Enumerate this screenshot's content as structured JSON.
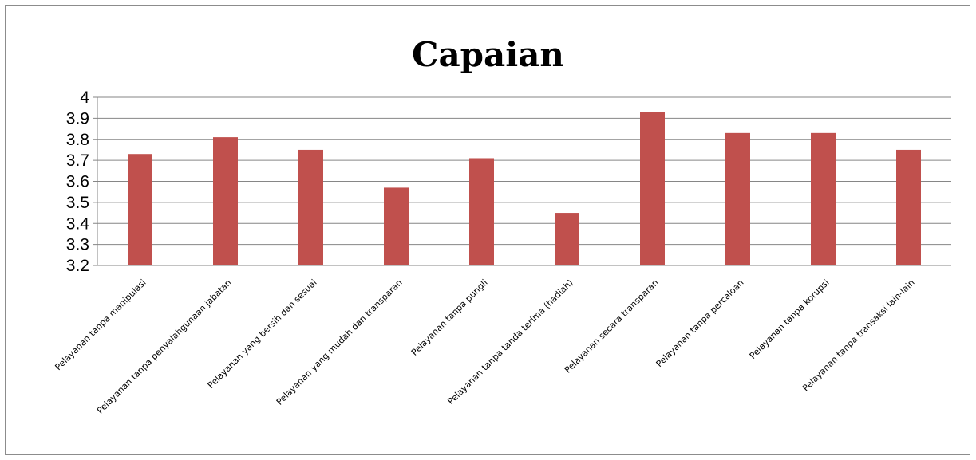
{
  "chart_data": {
    "type": "bar",
    "title": "Capaian",
    "xlabel": "",
    "ylabel": "",
    "ylim": [
      3.2,
      4
    ],
    "yticks": [
      3.2,
      3.3,
      3.4,
      3.5,
      3.6,
      3.7,
      3.8,
      3.9,
      4
    ],
    "grid": true,
    "legend": "none",
    "bar_color": "#c0504d",
    "categories": [
      "Pelayanan tanpa manipulasi",
      "Pelayanan tanpa penyalahgunaan jabatan",
      "Pelayanan yang bersih dan sesuai",
      "Pelayanan yang mudah dan transparan",
      "Pelayanan tanpa pungli",
      "Pelayanan tanpa tanda terima (hadiah)",
      "Pelayanan secara transparan",
      "Pelayanan tanpa percaloan",
      "Pelayanan tanpa korupsi",
      "Pelayanan tanpa transaksi lain-lain"
    ],
    "values": [
      3.73,
      3.81,
      3.75,
      3.57,
      3.71,
      3.45,
      3.93,
      3.83,
      3.83,
      3.75
    ]
  }
}
